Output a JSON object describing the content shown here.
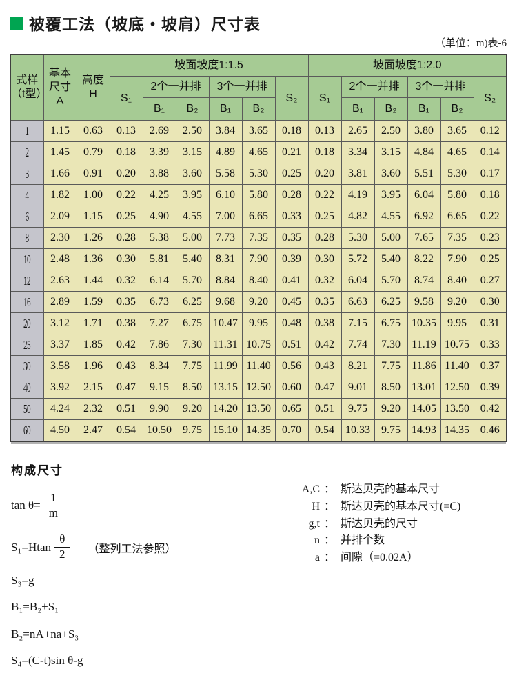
{
  "page": {
    "title": "被覆工法（坡底・坡肩）尺寸表",
    "unit_label": "（单位：m)表-6"
  },
  "colors": {
    "title_green": "#00a551",
    "header_green": "#a6cb94",
    "cell_yellow": "#eae6b6",
    "row_label_gray": "#c5c5cc"
  },
  "table": {
    "header": {
      "style_col": "式样\n（t型）",
      "basic_dim": "基本\n尺寸\nA",
      "height_col": "高度\nH",
      "slope15": "坡面坡度1:1.5",
      "slope20": "坡面坡度1:2.0",
      "two_abreast": "2个一并排",
      "three_abreast": "3个一并排",
      "s1": "S₁",
      "s2": "S₂",
      "b1": "B₁",
      "b2": "B₂"
    },
    "rows": [
      [
        "1",
        "1.15",
        "0.63",
        "0.13",
        "2.69",
        "2.50",
        "3.84",
        "3.65",
        "0.18",
        "0.13",
        "2.65",
        "2.50",
        "3.80",
        "3.65",
        "0.12"
      ],
      [
        "2",
        "1.45",
        "0.79",
        "0.18",
        "3.39",
        "3.15",
        "4.89",
        "4.65",
        "0.21",
        "0.18",
        "3.34",
        "3.15",
        "4.84",
        "4.65",
        "0.14"
      ],
      [
        "3",
        "1.66",
        "0.91",
        "0.20",
        "3.88",
        "3.60",
        "5.58",
        "5.30",
        "0.25",
        "0.20",
        "3.81",
        "3.60",
        "5.51",
        "5.30",
        "0.17"
      ],
      [
        "4",
        "1.82",
        "1.00",
        "0.22",
        "4.25",
        "3.95",
        "6.10",
        "5.80",
        "0.28",
        "0.22",
        "4.19",
        "3.95",
        "6.04",
        "5.80",
        "0.18"
      ],
      [
        "6",
        "2.09",
        "1.15",
        "0.25",
        "4.90",
        "4.55",
        "7.00",
        "6.65",
        "0.33",
        "0.25",
        "4.82",
        "4.55",
        "6.92",
        "6.65",
        "0.22"
      ],
      [
        "8",
        "2.30",
        "1.26",
        "0.28",
        "5.38",
        "5.00",
        "7.73",
        "7.35",
        "0.35",
        "0.28",
        "5.30",
        "5.00",
        "7.65",
        "7.35",
        "0.23"
      ],
      [
        "10",
        "2.48",
        "1.36",
        "0.30",
        "5.81",
        "5.40",
        "8.31",
        "7.90",
        "0.39",
        "0.30",
        "5.72",
        "5.40",
        "8.22",
        "7.90",
        "0.25"
      ],
      [
        "12",
        "2.63",
        "1.44",
        "0.32",
        "6.14",
        "5.70",
        "8.84",
        "8.40",
        "0.41",
        "0.32",
        "6.04",
        "5.70",
        "8.74",
        "8.40",
        "0.27"
      ],
      [
        "16",
        "2.89",
        "1.59",
        "0.35",
        "6.73",
        "6.25",
        "9.68",
        "9.20",
        "0.45",
        "0.35",
        "6.63",
        "6.25",
        "9.58",
        "9.20",
        "0.30"
      ],
      [
        "20",
        "3.12",
        "1.71",
        "0.38",
        "7.27",
        "6.75",
        "10.47",
        "9.95",
        "0.48",
        "0.38",
        "7.15",
        "6.75",
        "10.35",
        "9.95",
        "0.31"
      ],
      [
        "25",
        "3.37",
        "1.85",
        "0.42",
        "7.86",
        "7.30",
        "11.31",
        "10.75",
        "0.51",
        "0.42",
        "7.74",
        "7.30",
        "11.19",
        "10.75",
        "0.33"
      ],
      [
        "30",
        "3.58",
        "1.96",
        "0.43",
        "8.34",
        "7.75",
        "11.99",
        "11.40",
        "0.56",
        "0.43",
        "8.21",
        "7.75",
        "11.86",
        "11.40",
        "0.37"
      ],
      [
        "40",
        "3.92",
        "2.15",
        "0.47",
        "9.15",
        "8.50",
        "13.15",
        "12.50",
        "0.60",
        "0.47",
        "9.01",
        "8.50",
        "13.01",
        "12.50",
        "0.39"
      ],
      [
        "50",
        "4.24",
        "2.32",
        "0.51",
        "9.90",
        "9.20",
        "14.20",
        "13.50",
        "0.65",
        "0.51",
        "9.75",
        "9.20",
        "14.05",
        "13.50",
        "0.42"
      ],
      [
        "60",
        "4.50",
        "2.47",
        "0.54",
        "10.50",
        "9.75",
        "15.10",
        "14.35",
        "0.70",
        "0.54",
        "10.33",
        "9.75",
        "14.93",
        "14.35",
        "0.46"
      ]
    ]
  },
  "formulas": {
    "heading": "构成尺寸",
    "f1": {
      "lhs": "tan θ=",
      "num": "1",
      "den": "m"
    },
    "f2": {
      "lhs": "S₁=Htan",
      "num": "θ",
      "den": "2",
      "note": "（整列工法参照）"
    },
    "f3": "S₃=g",
    "f4": "B₁=B₂+S₁",
    "f5": "B₂=nA+na+S₃",
    "f6": "S₄=(C-t)sin θ-g"
  },
  "legend": {
    "items": [
      {
        "term": "A,C",
        "colon": "：",
        "desc": "斯达贝壳的基本尺寸"
      },
      {
        "term": "H",
        "colon": "：",
        "desc": "斯达贝壳的基本尺寸(=C)"
      },
      {
        "term": "g,t",
        "colon": "：",
        "desc": "斯达贝壳的尺寸"
      },
      {
        "term": "n",
        "colon": "：",
        "desc": "并排个数"
      },
      {
        "term": "a",
        "colon": "：",
        "desc": "间隙（=0.02A）"
      }
    ]
  }
}
